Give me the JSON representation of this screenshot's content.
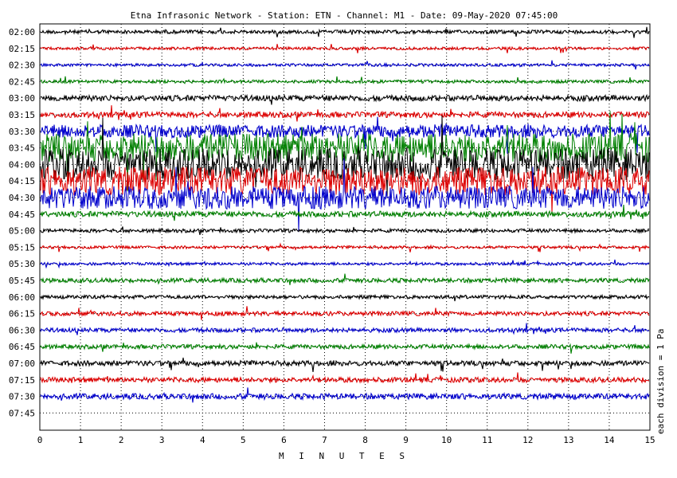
{
  "chart_data": {
    "type": "line",
    "title": "Etna Infrasonic Network - Station: ETN - Channel: M1 - Date: 09-May-2020 07:45:00",
    "xlabel": "M I N U T E S",
    "side_label": "each division = 1 Pa",
    "xlim": [
      0,
      15
    ],
    "x_ticks": [
      "0",
      "1",
      "2",
      "3",
      "4",
      "5",
      "6",
      "7",
      "8",
      "9",
      "10",
      "11",
      "12",
      "13",
      "14",
      "15"
    ],
    "grid": true,
    "row_colors": [
      "#000000",
      "#dd0000",
      "#0000cc",
      "#008000"
    ],
    "rows": [
      {
        "time": "02:00",
        "amplitude": 0.25
      },
      {
        "time": "02:15",
        "amplitude": 0.2
      },
      {
        "time": "02:30",
        "amplitude": 0.2
      },
      {
        "time": "02:45",
        "amplitude": 0.22
      },
      {
        "time": "03:00",
        "amplitude": 0.4
      },
      {
        "time": "03:15",
        "amplitude": 0.4
      },
      {
        "time": "03:30",
        "amplitude": 0.9
      },
      {
        "time": "03:45",
        "amplitude": 2.0
      },
      {
        "time": "04:00",
        "amplitude": 2.2
      },
      {
        "time": "04:15",
        "amplitude": 2.0
      },
      {
        "time": "04:30",
        "amplitude": 1.6
      },
      {
        "time": "04:45",
        "amplitude": 0.4
      },
      {
        "time": "05:00",
        "amplitude": 0.25
      },
      {
        "time": "05:15",
        "amplitude": 0.2
      },
      {
        "time": "05:30",
        "amplitude": 0.2
      },
      {
        "time": "05:45",
        "amplitude": 0.3
      },
      {
        "time": "06:00",
        "amplitude": 0.25
      },
      {
        "time": "06:15",
        "amplitude": 0.3
      },
      {
        "time": "06:30",
        "amplitude": 0.3
      },
      {
        "time": "06:45",
        "amplitude": 0.3
      },
      {
        "time": "07:00",
        "amplitude": 0.35
      },
      {
        "time": "07:15",
        "amplitude": 0.35
      },
      {
        "time": "07:30",
        "amplitude": 0.4
      },
      {
        "time": "07:45",
        "amplitude": 0
      }
    ]
  }
}
